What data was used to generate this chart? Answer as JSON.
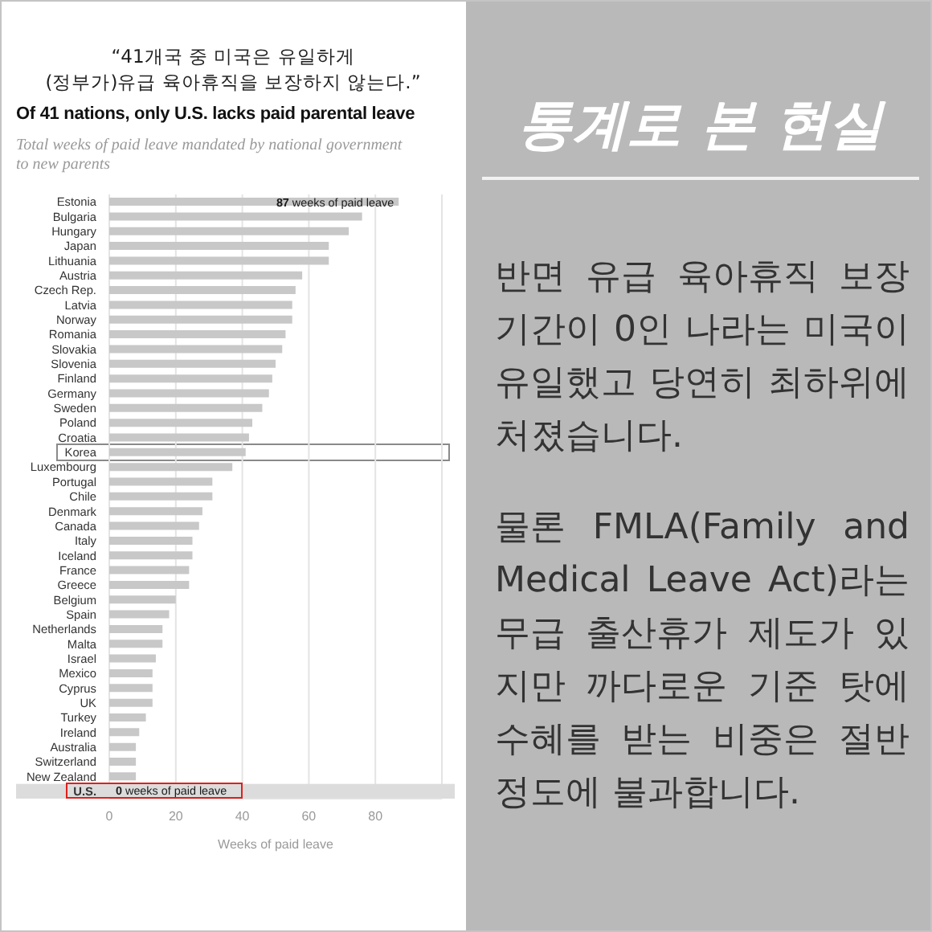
{
  "chart_data": [
    {
      "type": "bar",
      "orientation": "horizontal",
      "title": "“41개국 중 미국은 유일하게\n(정부가)유급 육아휴직을 보장하지 않는다.”",
      "subtitle": "Of 41 nations, only U.S. lacks paid parental leave",
      "annotations": [
        "Total weeks of paid leave mandated by national government to new parents"
      ],
      "xlabel": "Weeks of paid leave",
      "categories": [
        "Estonia",
        "Bulgaria",
        "Hungary",
        "Japan",
        "Lithuania",
        "Austria",
        "Czech Rep.",
        "Latvia",
        "Norway",
        "Romania",
        "Slovakia",
        "Slovenia",
        "Finland",
        "Germany",
        "Sweden",
        "Poland",
        "Croatia",
        "Korea",
        "Luxembourg",
        "Portugal",
        "Chile",
        "Denmark",
        "Canada",
        "Italy",
        "Iceland",
        "France",
        "Greece",
        "Belgium",
        "Spain",
        "Netherlands",
        "Malta",
        "Israel",
        "Mexico",
        "Cyprus",
        "UK",
        "Turkey",
        "Ireland",
        "Australia",
        "Switzerland",
        "New Zealand",
        "U.S."
      ],
      "values": [
        87,
        76,
        72,
        66,
        66,
        58,
        56,
        55,
        55,
        53,
        52,
        50,
        49,
        48,
        46,
        43,
        42,
        41,
        37,
        31,
        31,
        28,
        27,
        25,
        25,
        24,
        24,
        20,
        18,
        16,
        16,
        14,
        13,
        13,
        13,
        11,
        9,
        8,
        8,
        8,
        0
      ],
      "color": "#c8c8c8",
      "value_labels": [
        "87 weeks of paid leave",
        null,
        null,
        null,
        null,
        null,
        null,
        null,
        null,
        null,
        null,
        null,
        null,
        null,
        null,
        null,
        null,
        null,
        null,
        null,
        null,
        null,
        null,
        null,
        null,
        null,
        null,
        null,
        null,
        null,
        null,
        null,
        null,
        null,
        null,
        null,
        null,
        null,
        null,
        null,
        "0 weeks of paid leave"
      ],
      "xlim": [
        0,
        100
      ],
      "xticks": [
        0,
        20,
        40,
        60,
        80
      ],
      "grid": "x",
      "bands": [
        {
          "axis": "y",
          "from": "U.S.",
          "to": "U.S.",
          "color": "#dcdcdc"
        }
      ]
    },
    {
      "type": "other",
      "title": "통계로 본 현실",
      "annotations": [
        "반면 유급 육아휴직 보장 기간이 0인 나라는 미국이 유일했고 당연히 최하위에 처졌습니다.",
        "물론 FMLA(Family and Medical Leave Act)라는 무급 출산휴가 제도가 있지만 까다로운 기준 탓에 수혜를 받는 비중은 절반 정도에 불과합니다."
      ]
    }
  ]
}
